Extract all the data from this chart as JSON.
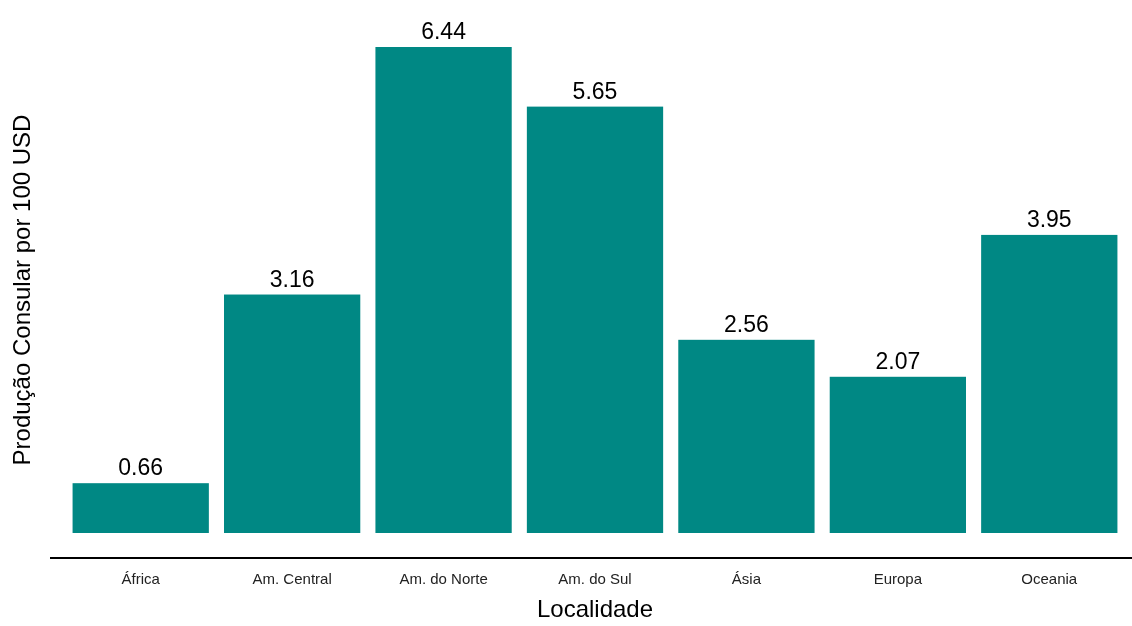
{
  "chart_data": {
    "type": "bar",
    "xlabel": "Localidade",
    "ylabel": "Produção Consular por 100 USD",
    "categories": [
      "África",
      "Am. Central",
      "Am. do Norte",
      "Am. do Sul",
      "Ásia",
      "Europa",
      "Oceania"
    ],
    "values": [
      0.66,
      3.16,
      6.44,
      5.65,
      2.56,
      2.07,
      3.95
    ],
    "color": "#008884",
    "data_labels": true
  }
}
